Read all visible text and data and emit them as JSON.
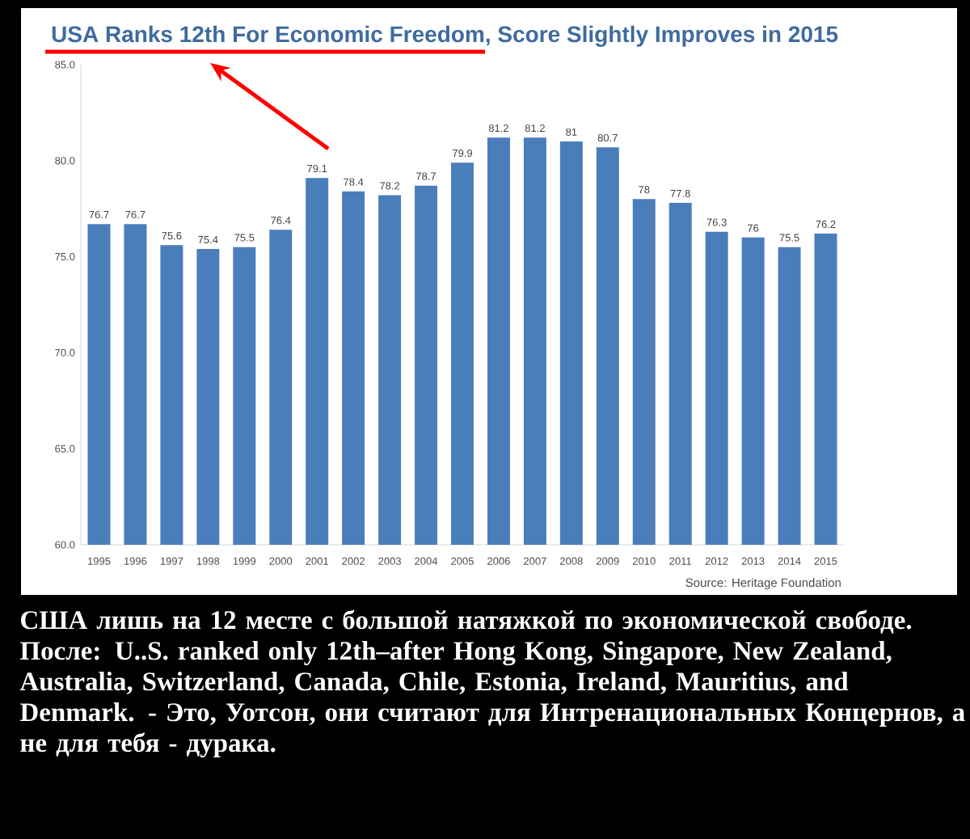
{
  "chart_data": {
    "type": "bar",
    "title": "USA Ranks 12th For Economic Freedom, Score Slightly Improves in 2015",
    "categories": [
      "1995",
      "1996",
      "1997",
      "1998",
      "1999",
      "2000",
      "2001",
      "2002",
      "2003",
      "2004",
      "2005",
      "2006",
      "2007",
      "2008",
      "2009",
      "2010",
      "2011",
      "2012",
      "2013",
      "2014",
      "2015"
    ],
    "values": [
      76.7,
      76.7,
      75.6,
      75.4,
      75.5,
      76.4,
      79.1,
      78.4,
      78.2,
      78.7,
      79.9,
      81.2,
      81.2,
      81,
      80.7,
      78,
      77.8,
      76.3,
      76,
      75.5,
      76.2
    ],
    "value_labels": [
      "76.7",
      "76.7",
      "75.6",
      "75.4",
      "75.5",
      "76.4",
      "79.1",
      "78.4",
      "78.2",
      "78.7",
      "79.9",
      "81.2",
      "81.2",
      "81",
      "80.7",
      "78",
      "77.8",
      "76.3",
      "76",
      "75.5",
      "76.2"
    ],
    "color": "#4a7ebb",
    "ylim": [
      60,
      85
    ],
    "yticks": [
      {
        "value": 60,
        "label": "60.0"
      },
      {
        "value": 65,
        "label": "65.0"
      },
      {
        "value": 70,
        "label": "70.0"
      },
      {
        "value": 75,
        "label": "75.0"
      },
      {
        "value": 80,
        "label": "80.0"
      },
      {
        "value": 85,
        "label": "85.0"
      }
    ],
    "grid": false,
    "annotations": [
      "Source: Heritage Foundation",
      "США лишь на 12 месте с большой натяжкой по экономической свободе. После: U..S. ranked only 12th–after Hong Kong, Singapore, New Zealand, Australia, Switzerland, Canada, Chile, Estonia, Ireland, Mauritius, and Denmark. - Это, Уотсон, они считают для Интренациональных Концернов, а не для тебя - дурака."
    ]
  }
}
